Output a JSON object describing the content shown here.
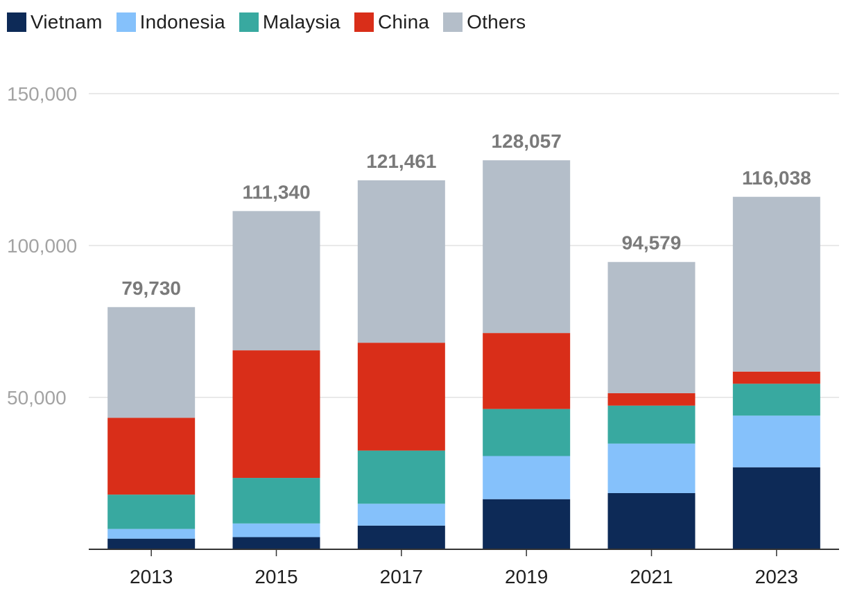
{
  "chart_data": {
    "type": "bar",
    "stacked": true,
    "title": "",
    "xlabel": "",
    "ylabel": "",
    "ylim": [
      0,
      150000
    ],
    "yticks": [
      50000,
      100000,
      150000
    ],
    "ytick_labels": [
      "50,000",
      "100,000",
      "150,000"
    ],
    "grid": true,
    "legend_position": "top-left",
    "categories": [
      "2013",
      "2015",
      "2017",
      "2019",
      "2021",
      "2023"
    ],
    "series": [
      {
        "name": "Vietnam",
        "color": "#0d2a57",
        "values": [
          3500,
          4000,
          7800,
          16500,
          18500,
          27000
        ]
      },
      {
        "name": "Indonesia",
        "color": "#85c1fb",
        "values": [
          3200,
          4500,
          7200,
          14200,
          16300,
          17000
        ]
      },
      {
        "name": "Malaysia",
        "color": "#38a9a0",
        "values": [
          11300,
          15000,
          17500,
          15500,
          12500,
          10500
        ]
      },
      {
        "name": "China",
        "color": "#d92e19",
        "values": [
          25300,
          42000,
          35500,
          25000,
          4100,
          4000
        ]
      },
      {
        "name": "Others",
        "color": "#b4bec9",
        "values": [
          36430,
          45840,
          53461,
          56857,
          43179,
          57538
        ]
      }
    ],
    "totals": [
      79730,
      111340,
      121461,
      128057,
      94579,
      116038
    ],
    "total_labels": [
      "79,730",
      "111,340",
      "121,461",
      "128,057",
      "94,579",
      "116,038"
    ]
  }
}
